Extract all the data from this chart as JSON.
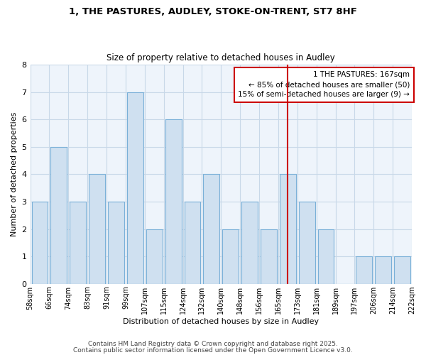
{
  "title_line1": "1, THE PASTURES, AUDLEY, STOKE-ON-TRENT, ST7 8HF",
  "title_line2": "Size of property relative to detached houses in Audley",
  "xlabel": "Distribution of detached houses by size in Audley",
  "ylabel": "Number of detached properties",
  "categories": [
    "58sqm",
    "66sqm",
    "74sqm",
    "83sqm",
    "91sqm",
    "99sqm",
    "107sqm",
    "115sqm",
    "124sqm",
    "132sqm",
    "140sqm",
    "148sqm",
    "156sqm",
    "165sqm",
    "173sqm",
    "181sqm",
    "189sqm",
    "197sqm",
    "206sqm",
    "214sqm",
    "222sqm"
  ],
  "bar_values": [
    3,
    5,
    3,
    4,
    3,
    7,
    2,
    6,
    3,
    4,
    2,
    3,
    2,
    4,
    3,
    2,
    0,
    1,
    1,
    1
  ],
  "bar_color": "#cfe0f0",
  "bar_edgecolor": "#7ab0d8",
  "grid_color": "#c8d8e8",
  "background_color": "#ffffff",
  "plot_bg_color": "#eef4fb",
  "red_line_index": 13,
  "annotation_title": "1 THE PASTURES: 167sqm",
  "annotation_line2": "← 85% of detached houses are smaller (50)",
  "annotation_line3": "15% of semi-detached houses are larger (9) →",
  "annotation_box_color": "#cc0000",
  "ylim": [
    0,
    8
  ],
  "yticks": [
    0,
    1,
    2,
    3,
    4,
    5,
    6,
    7,
    8
  ],
  "footer_line1": "Contains HM Land Registry data © Crown copyright and database right 2025.",
  "footer_line2": "Contains public sector information licensed under the Open Government Licence v3.0."
}
